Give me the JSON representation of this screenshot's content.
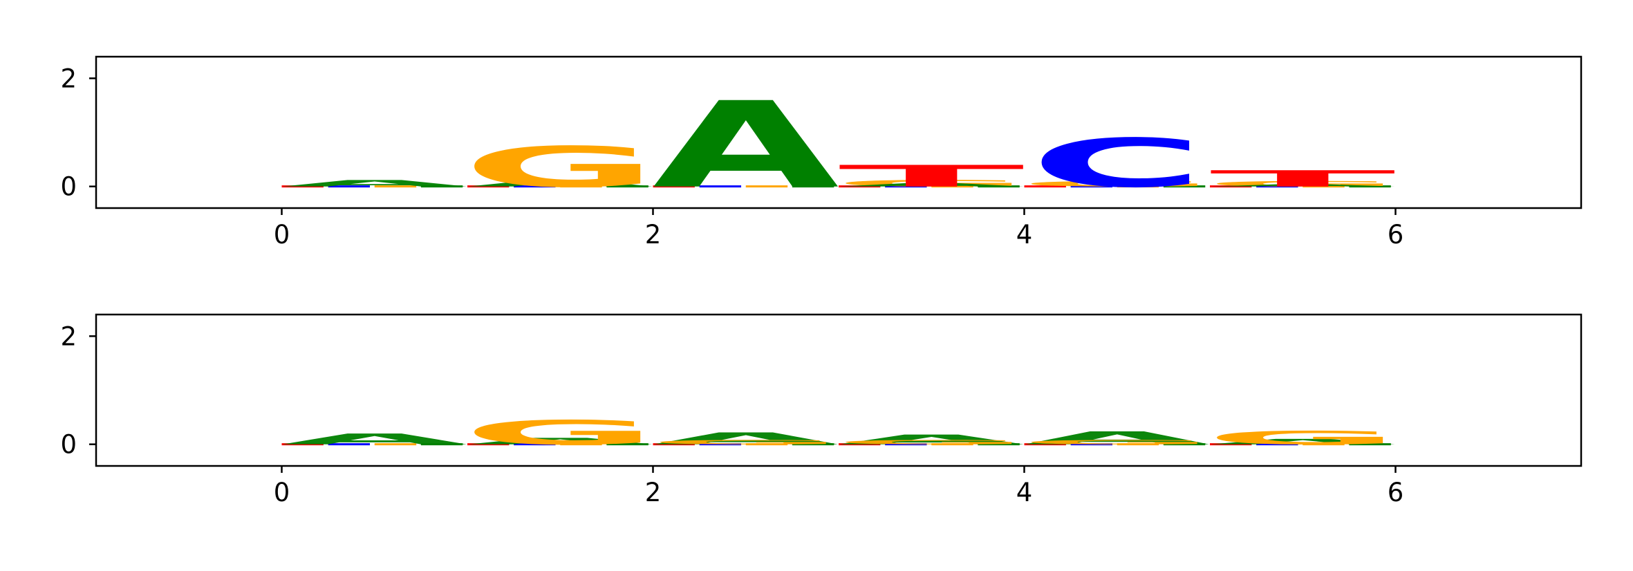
{
  "chart_data": [
    {
      "type": "sequence-logo",
      "title": "",
      "xlabel": "",
      "ylabel": "",
      "xlim": [
        -1,
        7
      ],
      "ylim": [
        -0.4,
        2.4
      ],
      "xticks": [
        "0",
        "2",
        "4",
        "6"
      ],
      "yticks": [
        "0",
        "2"
      ],
      "grid": false,
      "colors": {
        "A": "#008000",
        "C": "#0000ff",
        "G": "#ffa500",
        "T": "#ff0000"
      },
      "letters": [
        {
          "base": "G",
          "center": 1.5,
          "height": 0.75
        },
        {
          "base": "A",
          "center": 2.5,
          "height": 1.6
        },
        {
          "base": "T",
          "center": 3.5,
          "height": 0.4
        },
        {
          "base": "C",
          "center": 4.5,
          "height": 0.9
        },
        {
          "base": "T",
          "center": 5.5,
          "height": 0.3
        }
      ],
      "minor_letters": [
        {
          "base": "A",
          "center": 0.5,
          "height": 0.12
        },
        {
          "base": "A",
          "center": 1.5,
          "height": 0.12
        },
        {
          "base": "G",
          "center": 3.5,
          "height": 0.12
        },
        {
          "base": "A",
          "center": 3.5,
          "height": 0.06
        },
        {
          "base": "G",
          "center": 4.5,
          "height": 0.1
        },
        {
          "base": "G",
          "center": 5.5,
          "height": 0.1
        },
        {
          "base": "A",
          "center": 5.5,
          "height": 0.04
        }
      ]
    },
    {
      "type": "sequence-logo",
      "title": "",
      "xlabel": "",
      "ylabel": "",
      "xlim": [
        -1,
        7
      ],
      "ylim": [
        -0.4,
        2.4
      ],
      "xticks": [
        "0",
        "2",
        "4",
        "6"
      ],
      "yticks": [
        "0",
        "2"
      ],
      "grid": false,
      "colors": {
        "A": "#008000",
        "C": "#0000ff",
        "G": "#ffa500",
        "T": "#ff0000"
      },
      "letters": [
        {
          "base": "G",
          "center": 1.5,
          "height": 0.45
        },
        {
          "base": "G",
          "center": 5.5,
          "height": 0.25
        }
      ],
      "minor_letters": [
        {
          "base": "A",
          "center": 0.5,
          "height": 0.2
        },
        {
          "base": "A",
          "center": 1.5,
          "height": 0.12
        },
        {
          "base": "A",
          "center": 2.5,
          "height": 0.22
        },
        {
          "base": "A",
          "center": 3.5,
          "height": 0.18
        },
        {
          "base": "A",
          "center": 4.5,
          "height": 0.24
        },
        {
          "base": "A",
          "center": 5.5,
          "height": 0.1
        },
        {
          "base": "G",
          "center": 2.5,
          "height": 0.08
        },
        {
          "base": "G",
          "center": 3.5,
          "height": 0.08
        },
        {
          "base": "G",
          "center": 4.5,
          "height": 0.08
        }
      ]
    }
  ]
}
